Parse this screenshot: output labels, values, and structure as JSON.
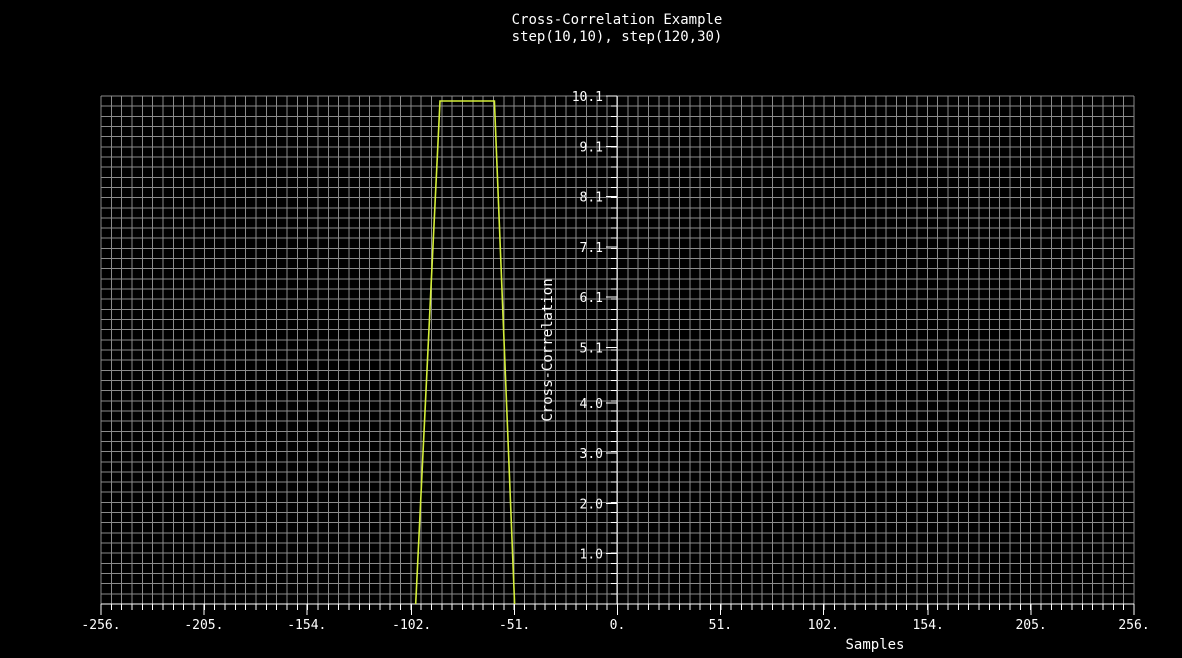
{
  "chart_data": {
    "type": "line",
    "title": "Cross-Correlation Example",
    "subtitle": "step(10,10), step(120,30)",
    "xlabel": "Samples",
    "ylabel": "Cross-Correlation",
    "xlim": [
      -256,
      256
    ],
    "ylim": [
      0,
      10.1
    ],
    "grid": true,
    "colors": {
      "background": "#000000",
      "grid": "#8a8a8a",
      "axis": "#ffffff",
      "text": "#ffffff",
      "series": "#d4ee3a"
    },
    "x_ticks": [
      {
        "value": -256,
        "label": "-256."
      },
      {
        "value": -205,
        "label": "-205."
      },
      {
        "value": -154,
        "label": "-154."
      },
      {
        "value": -102,
        "label": "-102."
      },
      {
        "value": -51,
        "label": "-51."
      },
      {
        "value": 0,
        "label": "0."
      },
      {
        "value": 51,
        "label": "51."
      },
      {
        "value": 102,
        "label": "102."
      },
      {
        "value": 154,
        "label": "154."
      },
      {
        "value": 205,
        "label": "205."
      },
      {
        "value": 256,
        "label": "256."
      }
    ],
    "y_ticks": [
      {
        "value": 1.0,
        "label": "1.0"
      },
      {
        "value": 2.0,
        "label": "2.0"
      },
      {
        "value": 3.0,
        "label": "3.0"
      },
      {
        "value": 4.0,
        "label": "4.0"
      },
      {
        "value": 5.1,
        "label": "5.1"
      },
      {
        "value": 6.1,
        "label": "6.1"
      },
      {
        "value": 7.1,
        "label": "7.1"
      },
      {
        "value": 8.1,
        "label": "8.1"
      },
      {
        "value": 9.1,
        "label": "9.1"
      },
      {
        "value": 10.1,
        "label": "10.1"
      }
    ],
    "series": [
      {
        "x": [
          -100,
          -88,
          -61,
          -51
        ],
        "y": [
          0,
          10,
          10,
          0
        ]
      }
    ]
  }
}
